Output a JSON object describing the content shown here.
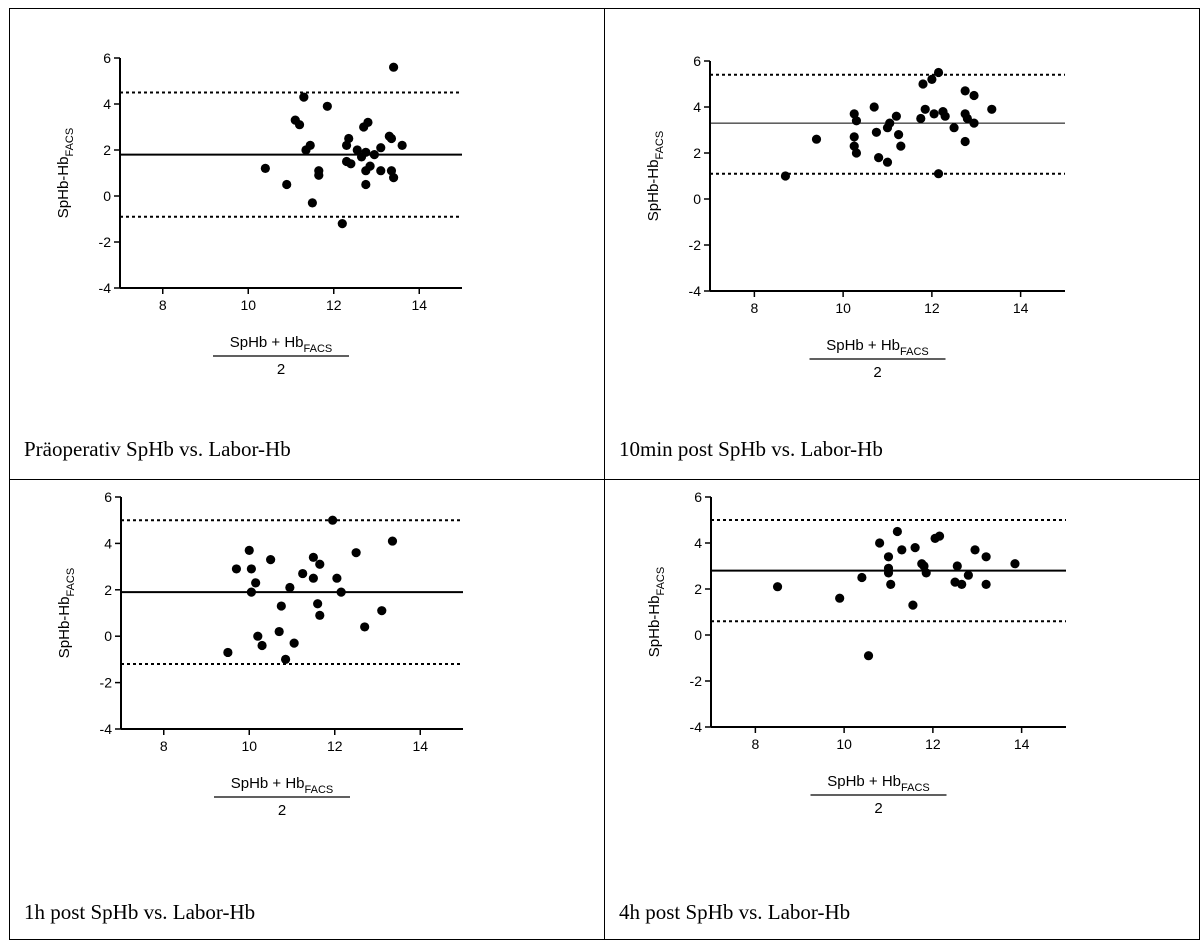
{
  "chart_data": [
    {
      "type": "scatter",
      "caption": "Präoperativ SpHb vs. Labor-Hb",
      "ylabel": {
        "main": "SpHb-Hb",
        "sub": "FACS"
      },
      "xlabel": {
        "numerator": "SpHb + Hb",
        "numerator_sub": "FACS",
        "denominator": "2"
      },
      "xlim": [
        7,
        15
      ],
      "ylim": [
        -4,
        6
      ],
      "xticks": [
        8,
        10,
        12,
        14
      ],
      "yticks": [
        -4,
        -2,
        0,
        2,
        4,
        6
      ],
      "mean_bias": 1.8,
      "upper_loa": 4.5,
      "lower_loa": -0.9,
      "mean_line_style": "solid-thick",
      "points": [
        [
          10.4,
          1.2
        ],
        [
          10.9,
          0.5
        ],
        [
          11.1,
          3.3
        ],
        [
          11.2,
          3.1
        ],
        [
          11.3,
          4.3
        ],
        [
          11.35,
          2.0
        ],
        [
          11.45,
          2.2
        ],
        [
          11.5,
          -0.3
        ],
        [
          11.65,
          1.1
        ],
        [
          11.65,
          0.9
        ],
        [
          11.85,
          3.9
        ],
        [
          12.2,
          -1.2
        ],
        [
          12.3,
          2.2
        ],
        [
          12.35,
          2.5
        ],
        [
          12.3,
          1.5
        ],
        [
          12.4,
          1.4
        ],
        [
          12.55,
          2.0
        ],
        [
          12.65,
          1.7
        ],
        [
          12.7,
          3.0
        ],
        [
          12.75,
          1.9
        ],
        [
          12.8,
          3.2
        ],
        [
          12.75,
          1.1
        ],
        [
          12.75,
          0.5
        ],
        [
          12.85,
          1.3
        ],
        [
          12.95,
          1.8
        ],
        [
          13.1,
          2.1
        ],
        [
          13.1,
          1.1
        ],
        [
          13.3,
          2.6
        ],
        [
          13.35,
          2.5
        ],
        [
          13.35,
          1.1
        ],
        [
          13.4,
          0.8
        ],
        [
          13.6,
          2.2
        ],
        [
          13.4,
          5.6
        ]
      ]
    },
    {
      "type": "scatter",
      "caption": "10min post SpHb vs. Labor-Hb",
      "ylabel": {
        "main": "SpHb-Hb",
        "sub": "FACS"
      },
      "xlabel": {
        "numerator": "SpHb + Hb",
        "numerator_sub": "FACS",
        "denominator": "2"
      },
      "xlim": [
        7,
        15
      ],
      "ylim": [
        -4,
        6
      ],
      "xticks": [
        8,
        10,
        12,
        14
      ],
      "yticks": [
        -4,
        -2,
        0,
        2,
        4,
        6
      ],
      "mean_bias": 3.3,
      "upper_loa": 5.4,
      "lower_loa": 1.1,
      "mean_line_style": "solid-thin",
      "points": [
        [
          8.7,
          1.0
        ],
        [
          9.4,
          2.6
        ],
        [
          10.25,
          3.7
        ],
        [
          10.3,
          3.4
        ],
        [
          10.25,
          2.7
        ],
        [
          10.25,
          2.3
        ],
        [
          10.3,
          2.0
        ],
        [
          10.7,
          4.0
        ],
        [
          10.75,
          2.9
        ],
        [
          10.8,
          1.8
        ],
        [
          11.0,
          1.6
        ],
        [
          11.0,
          3.1
        ],
        [
          11.05,
          3.3
        ],
        [
          11.2,
          3.6
        ],
        [
          11.25,
          2.8
        ],
        [
          11.3,
          2.3
        ],
        [
          11.75,
          3.5
        ],
        [
          11.8,
          5.0
        ],
        [
          11.85,
          3.9
        ],
        [
          12.0,
          5.2
        ],
        [
          12.05,
          3.7
        ],
        [
          12.15,
          5.5
        ],
        [
          12.15,
          1.1
        ],
        [
          12.25,
          3.8
        ],
        [
          12.3,
          3.6
        ],
        [
          12.5,
          3.1
        ],
        [
          12.75,
          4.7
        ],
        [
          12.75,
          3.7
        ],
        [
          12.75,
          2.5
        ],
        [
          12.8,
          3.5
        ],
        [
          12.95,
          4.5
        ],
        [
          12.95,
          3.3
        ],
        [
          13.35,
          3.9
        ]
      ]
    },
    {
      "type": "scatter",
      "caption": "1h post SpHb vs. Labor-Hb",
      "ylabel": {
        "main": "SpHb-Hb",
        "sub": "FACS"
      },
      "xlabel": {
        "numerator": "SpHb + Hb",
        "numerator_sub": "FACS",
        "denominator": "2"
      },
      "xlim": [
        7,
        15
      ],
      "ylim": [
        -4,
        6
      ],
      "xticks": [
        8,
        10,
        12,
        14
      ],
      "yticks": [
        -4,
        -2,
        0,
        2,
        4,
        6
      ],
      "mean_bias": 1.9,
      "upper_loa": 5.0,
      "lower_loa": -1.2,
      "mean_line_style": "solid-thick",
      "points": [
        [
          9.5,
          -0.7
        ],
        [
          9.7,
          2.9
        ],
        [
          10.0,
          3.7
        ],
        [
          10.05,
          2.9
        ],
        [
          10.05,
          1.9
        ],
        [
          10.15,
          2.3
        ],
        [
          10.2,
          0.0
        ],
        [
          10.3,
          -0.4
        ],
        [
          10.5,
          3.3
        ],
        [
          10.7,
          0.2
        ],
        [
          10.75,
          1.3
        ],
        [
          10.85,
          -1.0
        ],
        [
          10.95,
          2.1
        ],
        [
          11.05,
          -0.3
        ],
        [
          11.25,
          2.7
        ],
        [
          11.5,
          3.4
        ],
        [
          11.5,
          2.5
        ],
        [
          11.6,
          1.4
        ],
        [
          11.65,
          3.1
        ],
        [
          11.65,
          0.9
        ],
        [
          11.95,
          5.0
        ],
        [
          12.05,
          2.5
        ],
        [
          12.15,
          1.9
        ],
        [
          12.5,
          3.6
        ],
        [
          12.7,
          0.4
        ],
        [
          13.1,
          1.1
        ],
        [
          13.35,
          4.1
        ]
      ]
    },
    {
      "type": "scatter",
      "caption": "4h post SpHb vs. Labor-Hb",
      "ylabel": {
        "main": "SpHb-Hb",
        "sub": "FACS"
      },
      "xlabel": {
        "numerator": "SpHb + Hb",
        "numerator_sub": "FACS",
        "denominator": "2"
      },
      "xlim": [
        7,
        15
      ],
      "ylim": [
        -4,
        6
      ],
      "xticks": [
        8,
        10,
        12,
        14
      ],
      "yticks": [
        -4,
        -2,
        0,
        2,
        4,
        6
      ],
      "mean_bias": 2.8,
      "upper_loa": 5.0,
      "lower_loa": 0.6,
      "mean_line_style": "solid-thick",
      "points": [
        [
          8.5,
          2.1
        ],
        [
          9.9,
          1.6
        ],
        [
          10.4,
          2.5
        ],
        [
          10.55,
          -0.9
        ],
        [
          10.8,
          4.0
        ],
        [
          11.0,
          3.4
        ],
        [
          11.0,
          2.9
        ],
        [
          11.0,
          2.7
        ],
        [
          11.05,
          2.2
        ],
        [
          11.2,
          4.5
        ],
        [
          11.3,
          3.7
        ],
        [
          11.55,
          1.3
        ],
        [
          11.6,
          3.8
        ],
        [
          11.75,
          3.1
        ],
        [
          11.8,
          3.0
        ],
        [
          11.85,
          2.7
        ],
        [
          12.05,
          4.2
        ],
        [
          12.15,
          4.3
        ],
        [
          12.5,
          2.3
        ],
        [
          12.55,
          3.0
        ],
        [
          12.65,
          2.2
        ],
        [
          12.8,
          2.6
        ],
        [
          12.95,
          3.7
        ],
        [
          13.2,
          3.4
        ],
        [
          13.2,
          2.2
        ],
        [
          13.85,
          3.1
        ]
      ]
    }
  ]
}
